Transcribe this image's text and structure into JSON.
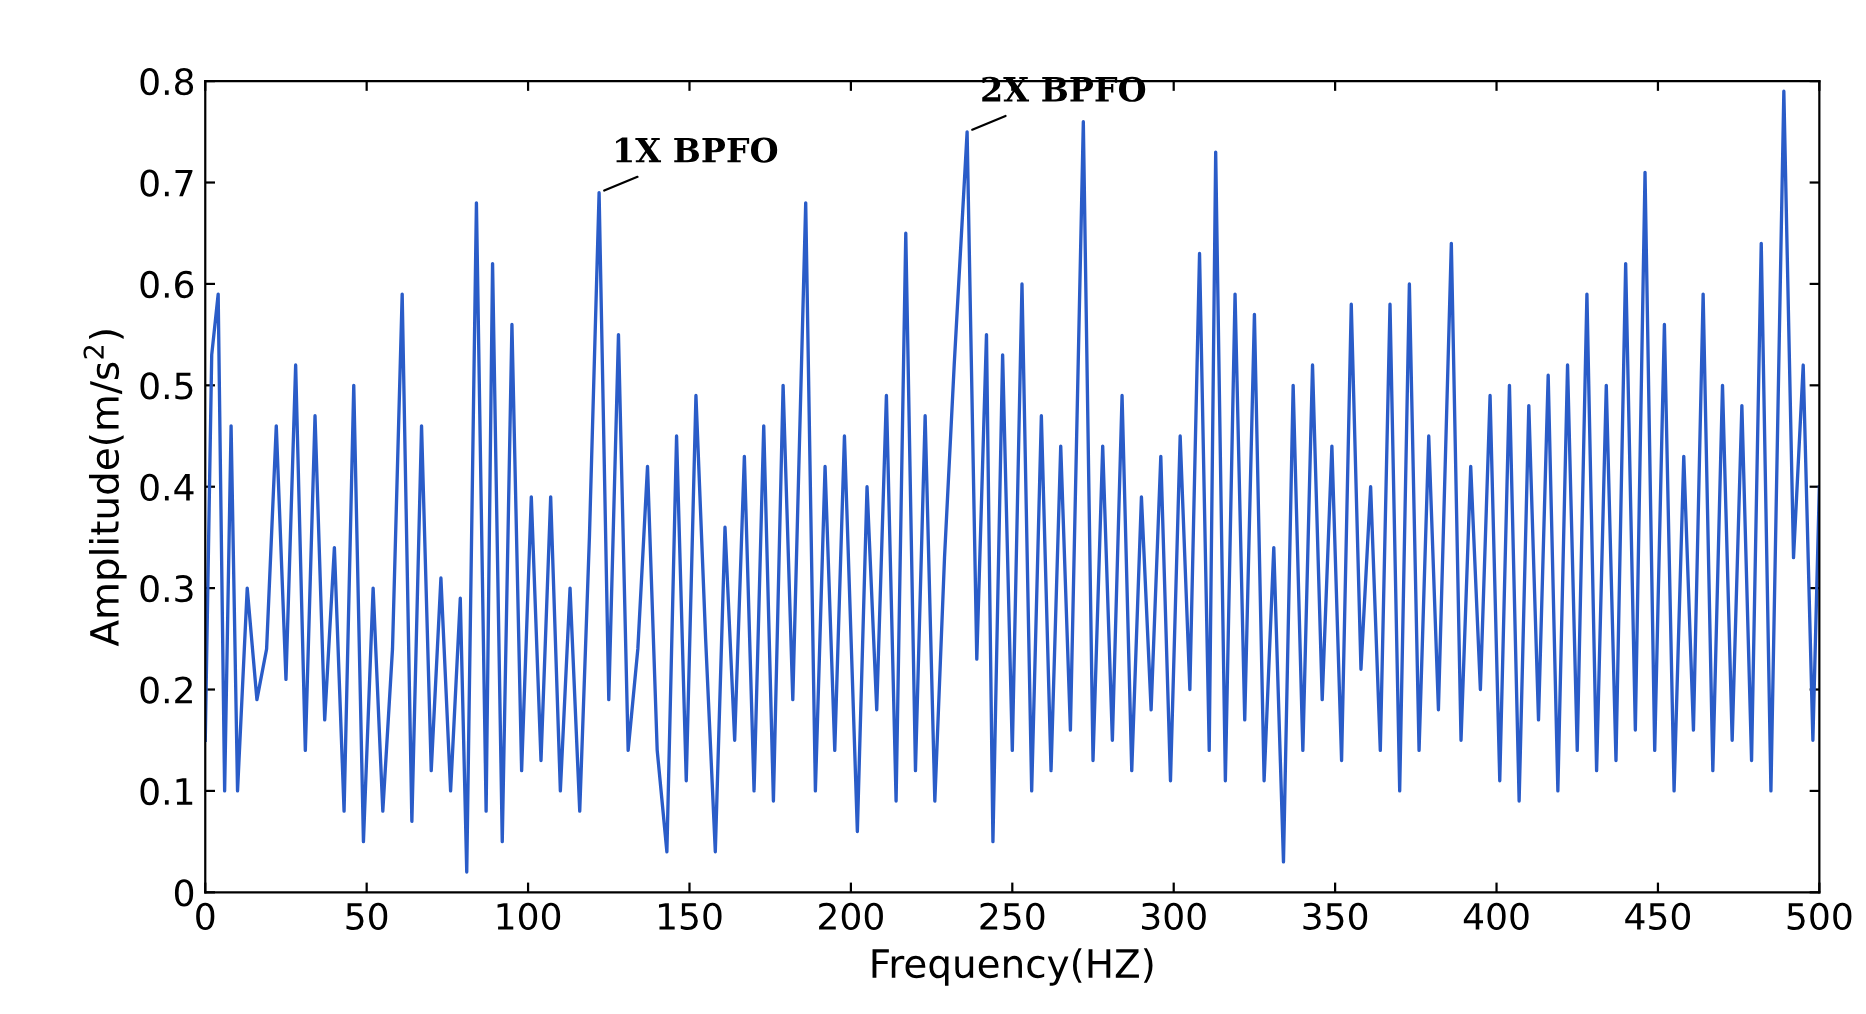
{
  "chart_data": {
    "type": "line",
    "xlabel": "Frequency(HZ)",
    "ylabel": "Amplitude(m/s$^{2}$)",
    "x": [
      0,
      2,
      4,
      6,
      8,
      10,
      13,
      16,
      19,
      22,
      25,
      28,
      31,
      34,
      37,
      40,
      43,
      46,
      49,
      52,
      55,
      58,
      61,
      64,
      67,
      70,
      73,
      76,
      79,
      81,
      84,
      87,
      89,
      92,
      95,
      98,
      101,
      104,
      107,
      110,
      113,
      116,
      119,
      122,
      125,
      128,
      131,
      134,
      137,
      140,
      143,
      146,
      149,
      152,
      155,
      158,
      161,
      164,
      167,
      170,
      173,
      176,
      179,
      182,
      186,
      189,
      192,
      195,
      198,
      202,
      205,
      208,
      211,
      214,
      217,
      220,
      223,
      226,
      229,
      232,
      236,
      239,
      242,
      244,
      247,
      250,
      253,
      256,
      259,
      262,
      265,
      268,
      272,
      275,
      278,
      281,
      284,
      287,
      290,
      293,
      296,
      299,
      302,
      305,
      308,
      311,
      313,
      316,
      319,
      322,
      325,
      328,
      331,
      334,
      337,
      340,
      343,
      346,
      349,
      352,
      355,
      358,
      361,
      364,
      367,
      370,
      373,
      376,
      379,
      382,
      386,
      389,
      392,
      395,
      398,
      401,
      404,
      407,
      410,
      413,
      416,
      419,
      422,
      425,
      428,
      431,
      434,
      437,
      440,
      443,
      446,
      449,
      452,
      455,
      458,
      461,
      464,
      467,
      470,
      473,
      476,
      479,
      482,
      485,
      489,
      492,
      495,
      498,
      500
    ],
    "series": [
      {
        "color": "#2a5cc8",
        "values": [
          0.15,
          0.53,
          0.59,
          0.1,
          0.46,
          0.1,
          0.3,
          0.19,
          0.24,
          0.46,
          0.21,
          0.52,
          0.14,
          0.47,
          0.17,
          0.34,
          0.08,
          0.5,
          0.05,
          0.3,
          0.08,
          0.24,
          0.59,
          0.07,
          0.46,
          0.12,
          0.31,
          0.1,
          0.29,
          0.02,
          0.68,
          0.08,
          0.62,
          0.05,
          0.56,
          0.12,
          0.39,
          0.13,
          0.39,
          0.1,
          0.3,
          0.08,
          0.35,
          0.69,
          0.19,
          0.55,
          0.14,
          0.24,
          0.42,
          0.14,
          0.04,
          0.45,
          0.11,
          0.49,
          0.25,
          0.04,
          0.36,
          0.15,
          0.43,
          0.1,
          0.46,
          0.09,
          0.5,
          0.19,
          0.68,
          0.1,
          0.42,
          0.14,
          0.45,
          0.06,
          0.4,
          0.18,
          0.49,
          0.09,
          0.65,
          0.12,
          0.47,
          0.09,
          0.33,
          0.52,
          0.75,
          0.23,
          0.55,
          0.05,
          0.53,
          0.14,
          0.6,
          0.1,
          0.47,
          0.12,
          0.44,
          0.16,
          0.76,
          0.13,
          0.44,
          0.15,
          0.49,
          0.12,
          0.39,
          0.18,
          0.43,
          0.11,
          0.45,
          0.2,
          0.63,
          0.14,
          0.73,
          0.11,
          0.59,
          0.17,
          0.57,
          0.11,
          0.34,
          0.03,
          0.5,
          0.14,
          0.52,
          0.19,
          0.44,
          0.13,
          0.58,
          0.22,
          0.4,
          0.14,
          0.58,
          0.1,
          0.6,
          0.14,
          0.45,
          0.18,
          0.64,
          0.15,
          0.42,
          0.2,
          0.49,
          0.11,
          0.5,
          0.09,
          0.48,
          0.17,
          0.51,
          0.1,
          0.52,
          0.14,
          0.59,
          0.12,
          0.5,
          0.13,
          0.62,
          0.16,
          0.71,
          0.14,
          0.56,
          0.1,
          0.43,
          0.16,
          0.59,
          0.12,
          0.5,
          0.15,
          0.48,
          0.13,
          0.64,
          0.1,
          0.79,
          0.33,
          0.52,
          0.15,
          0.4
        ]
      }
    ],
    "xlim": [
      0,
      500
    ],
    "xticks": [
      0,
      50,
      100,
      150,
      200,
      250,
      300,
      350,
      400,
      450,
      500
    ],
    "ylim": [
      0,
      0.8
    ],
    "yticks": [
      0,
      0.1,
      0.2,
      0.3,
      0.4,
      0.5,
      0.6,
      0.7,
      0.8
    ],
    "grid": false,
    "marker": "none",
    "line_style": "solid",
    "annotations": [
      {
        "text": "1X BPFO",
        "x": 122,
        "y": 0.69
      },
      {
        "text": "2X BPFO",
        "x": 236,
        "y": 0.75
      }
    ]
  }
}
